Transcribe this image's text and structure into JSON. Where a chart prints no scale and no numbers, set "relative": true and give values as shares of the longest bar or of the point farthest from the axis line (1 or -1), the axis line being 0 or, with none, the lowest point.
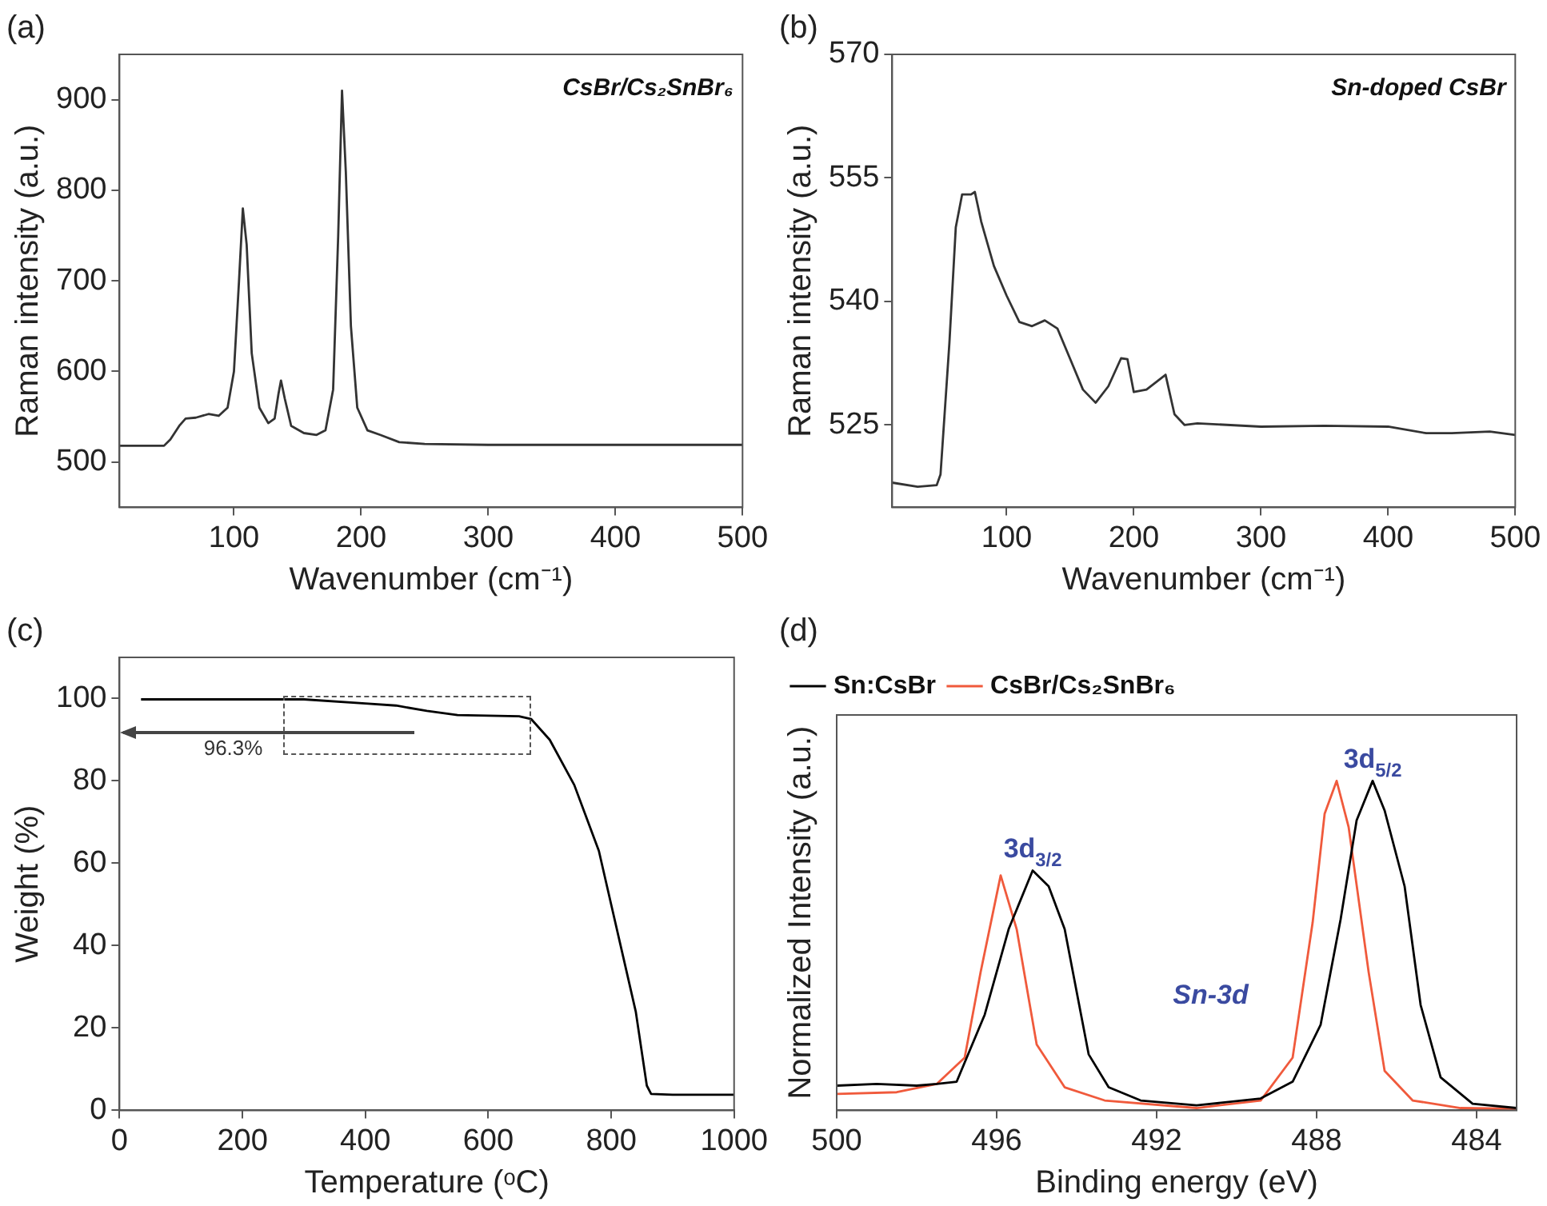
{
  "chart_data": [
    {
      "type": "line",
      "title": "(a)",
      "xlabel": "Wavenumber (cm⁻¹)",
      "ylabel": "Raman intensity (a.u.)",
      "xlim": [
        10,
        500
      ],
      "ylim": [
        450,
        950
      ],
      "xticks": [
        100,
        200,
        300,
        400,
        500
      ],
      "yticks": [
        500,
        600,
        700,
        800,
        900
      ],
      "grid": false,
      "legend": false,
      "marker": "none",
      "annotations": [
        "CsBr/Cs₂SnBr₆"
      ],
      "series": [
        {
          "color": "#333333",
          "x": [
            10,
            45,
            50,
            57,
            62,
            70,
            80,
            88,
            95,
            100,
            104,
            107,
            110,
            114,
            120,
            127,
            132,
            135,
            137,
            140,
            145,
            155,
            165,
            172,
            178,
            182,
            185,
            188,
            192,
            197,
            205,
            215,
            230,
            250,
            300,
            400,
            500
          ],
          "values": [
            518,
            518,
            525,
            540,
            548,
            549,
            553,
            551,
            560,
            600,
            700,
            780,
            740,
            620,
            560,
            543,
            548,
            575,
            590,
            570,
            540,
            532,
            530,
            535,
            580,
            750,
            910,
            820,
            650,
            560,
            535,
            530,
            522,
            520,
            519,
            519,
            519
          ]
        }
      ]
    },
    {
      "type": "line",
      "title": "(b)",
      "xlabel": "Wavenumber (cm⁻¹)",
      "ylabel": "Raman intensity (a.u.)",
      "xlim": [
        10,
        500
      ],
      "ylim": [
        515,
        570
      ],
      "xticks": [
        100,
        200,
        300,
        400,
        500
      ],
      "yticks": [
        525,
        540,
        555,
        570
      ],
      "grid": false,
      "legend": false,
      "marker": "none",
      "annotations": [
        "Sn-doped CsBr"
      ],
      "series": [
        {
          "color": "#333333",
          "x": [
            10,
            30,
            45,
            48,
            55,
            60,
            65,
            72,
            75,
            80,
            85,
            90,
            100,
            110,
            120,
            130,
            140,
            150,
            160,
            170,
            180,
            190,
            195,
            200,
            210,
            225,
            232,
            240,
            250,
            300,
            350,
            400,
            430,
            450,
            480,
            500
          ],
          "values": [
            518,
            517.5,
            517.7,
            519,
            535,
            549,
            553,
            553,
            553.3,
            549.7,
            547,
            544.3,
            540.7,
            537.5,
            537,
            537.7,
            536.7,
            533,
            529.3,
            527.7,
            529.7,
            533.1,
            533,
            529,
            529.3,
            531.1,
            526.3,
            525,
            525.2,
            524.8,
            524.9,
            524.8,
            524,
            524,
            524.2,
            523.8
          ]
        }
      ]
    },
    {
      "type": "line",
      "title": "(c)",
      "xlabel": "Temperature (ᵒC)",
      "ylabel": "Weight (%)",
      "xlim": [
        0,
        1000
      ],
      "ylim": [
        0,
        110
      ],
      "xticks": [
        0,
        200,
        400,
        600,
        800,
        1000
      ],
      "yticks": [
        0,
        20,
        40,
        60,
        80,
        100
      ],
      "grid": false,
      "legend": false,
      "marker": "none",
      "annotations": [
        "96.3%"
      ],
      "series": [
        {
          "color": "#000000",
          "x": [
            35,
            300,
            400,
            450,
            500,
            550,
            650,
            670,
            700,
            740,
            780,
            800,
            820,
            840,
            858,
            865,
            900,
            1000
          ],
          "values": [
            99.8,
            99.8,
            98.8,
            98.3,
            97,
            96,
            95.7,
            95,
            90,
            79,
            63,
            50,
            37,
            24,
            6,
            4,
            3.8,
            3.8
          ]
        }
      ]
    },
    {
      "type": "line",
      "title": "(d)",
      "xlabel": "Binding energy (eV)",
      "ylabel": "Normalized Intensity (a.u.)",
      "relative": true,
      "xlim": [
        500,
        483
      ],
      "xticks": [
        500,
        496,
        492,
        488,
        484
      ],
      "tick_labels": "x",
      "grid": false,
      "legend": "top left",
      "marker": "none",
      "annotations": [
        {
          "text": "3d$_{3/2}$",
          "x": 495.1,
          "y": 0.728
        },
        {
          "text": "3d$_{5/2}$",
          "x": 486.6,
          "y": 1
        },
        "Sn-3d"
      ],
      "series": [
        {
          "name": "Sn:CsBr",
          "color": "#000000",
          "x": [
            500,
            499,
            498,
            497.5,
            497,
            496.3,
            495.7,
            495.1,
            494.7,
            494.3,
            493.7,
            493.2,
            492.4,
            491,
            489.4,
            488.6,
            487.9,
            487.4,
            487,
            486.6,
            486.3,
            485.8,
            485.4,
            484.9,
            484.1,
            483
          ],
          "values": [
            0.075,
            0.08,
            0.075,
            0.08,
            0.087,
            0.29,
            0.55,
            0.728,
            0.68,
            0.55,
            0.17,
            0.07,
            0.03,
            0.015,
            0.036,
            0.087,
            0.26,
            0.58,
            0.88,
            1,
            0.91,
            0.68,
            0.32,
            0.1,
            0.02,
            0.007
          ]
        },
        {
          "name": "CsBr/Cs₂SnBr₆",
          "color": "#f05a3c",
          "x": [
            500,
            498.5,
            497.5,
            496.8,
            496.4,
            495.9,
            495.5,
            495,
            494.3,
            493.3,
            491,
            489.4,
            488.6,
            488.1,
            487.8,
            487.5,
            487.2,
            486.7,
            486.3,
            485.6,
            484.4,
            483
          ],
          "values": [
            0.05,
            0.055,
            0.08,
            0.16,
            0.42,
            0.713,
            0.55,
            0.2,
            0.07,
            0.03,
            0.007,
            0.03,
            0.16,
            0.57,
            0.9,
            1,
            0.86,
            0.42,
            0.12,
            0.03,
            0.007,
            0.005
          ]
        }
      ]
    }
  ]
}
